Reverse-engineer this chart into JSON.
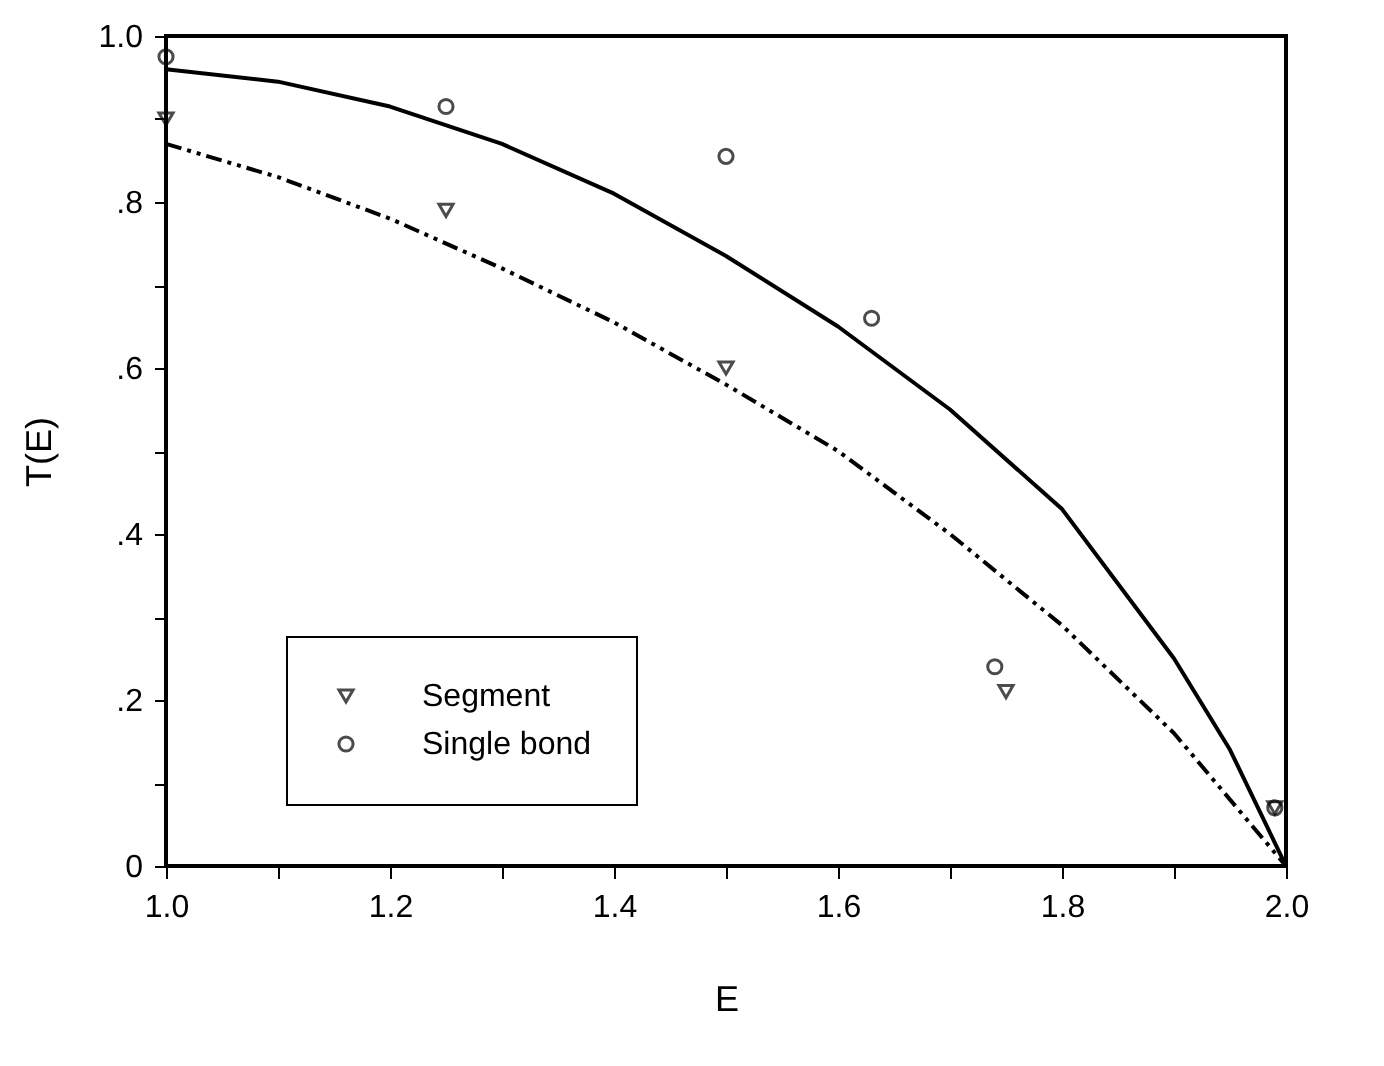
{
  "chart_data": {
    "type": "scatter",
    "xlabel": "E",
    "ylabel": "T(E)",
    "xlim": [
      1.0,
      2.0
    ],
    "ylim": [
      0,
      1.0
    ],
    "xticks": [
      {
        "value": 1.0,
        "label": "1.0"
      },
      {
        "value": 1.1,
        "label": null
      },
      {
        "value": 1.2,
        "label": "1.2"
      },
      {
        "value": 1.3,
        "label": null
      },
      {
        "value": 1.4,
        "label": "1.4"
      },
      {
        "value": 1.5,
        "label": null
      },
      {
        "value": 1.6,
        "label": "1.6"
      },
      {
        "value": 1.7,
        "label": null
      },
      {
        "value": 1.8,
        "label": "1.8"
      },
      {
        "value": 1.9,
        "label": null
      },
      {
        "value": 2.0,
        "label": "2.0"
      }
    ],
    "yticks": [
      0,
      {
        "value": 0.1,
        "label": null
      },
      {
        "value": 0.2,
        "label": ".2"
      },
      {
        "value": 0.3,
        "label": null
      },
      {
        "value": 0.4,
        "label": ".4"
      },
      {
        "value": 0.5,
        "label": null
      },
      {
        "value": 0.6,
        "label": ".6"
      },
      {
        "value": 0.7,
        "label": null
      },
      {
        "value": 0.8,
        "label": ".8"
      },
      {
        "value": 0.9,
        "label": null
      },
      {
        "value": 1.0,
        "label": "1.0"
      }
    ],
    "grid": false,
    "legend": "bottom left",
    "series": [
      {
        "name": "Segment",
        "marker": "triangle",
        "color": "#000000",
        "x": [
          1.0,
          1.25,
          1.5,
          1.75,
          1.99
        ],
        "values": [
          0.9,
          0.79,
          0.6,
          0.21,
          0.07
        ]
      },
      {
        "name": "Single bond",
        "marker": "circle",
        "color": "#000000",
        "x": [
          1.0,
          1.25,
          1.5,
          1.63,
          1.74,
          1.99
        ],
        "values": [
          0.975,
          0.915,
          0.855,
          0.66,
          0.24,
          0.07
        ]
      },
      {
        "type": "line",
        "line_style": "solid",
        "color": "#000000",
        "x": [
          1.0,
          1.1,
          1.2,
          1.3,
          1.4,
          1.5,
          1.6,
          1.7,
          1.8,
          1.9,
          1.95,
          2.0
        ],
        "values": [
          0.96,
          0.945,
          0.915,
          0.87,
          0.81,
          0.735,
          0.65,
          0.55,
          0.43,
          0.25,
          0.14,
          0
        ]
      },
      {
        "type": "line",
        "line_style": "dashed",
        "color": "#000000",
        "x": [
          1.0,
          1.1,
          1.2,
          1.3,
          1.4,
          1.5,
          1.6,
          1.7,
          1.8,
          1.9,
          1.95,
          2.0
        ],
        "values": [
          0.87,
          0.83,
          0.78,
          0.72,
          0.655,
          0.58,
          0.5,
          0.4,
          0.29,
          0.16,
          0.08,
          0
        ]
      }
    ]
  }
}
